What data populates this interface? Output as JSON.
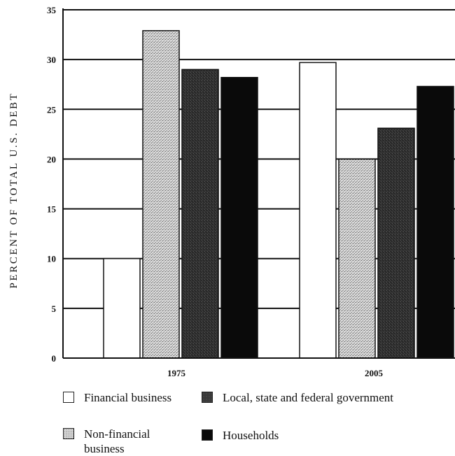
{
  "chart_data": {
    "type": "bar",
    "title": "",
    "xlabel": "",
    "ylabel": "PERCENT OF TOTAL U.S. DEBT",
    "ylim": [
      0,
      35
    ],
    "yticks": [
      "0",
      "5",
      "10",
      "15",
      "20",
      "25",
      "30",
      "35"
    ],
    "grid": true,
    "categories": [
      "1975",
      "2005"
    ],
    "series": [
      {
        "name": "Financial business",
        "values": [
          10,
          29.7
        ],
        "color": "#ffffff",
        "pattern": "none"
      },
      {
        "name": "Non-financial business",
        "values": [
          32.9,
          20
        ],
        "color": "#c8c8c8",
        "pattern": "stipple"
      },
      {
        "name": "Local, state and federal government",
        "values": [
          29,
          23.1
        ],
        "color": "#3a3a3a",
        "pattern": "dark-stipple"
      },
      {
        "name": "Households",
        "values": [
          28.2,
          27.3
        ],
        "color": "#0a0a0a",
        "pattern": "solid"
      }
    ],
    "legend_placement": "bottom"
  }
}
